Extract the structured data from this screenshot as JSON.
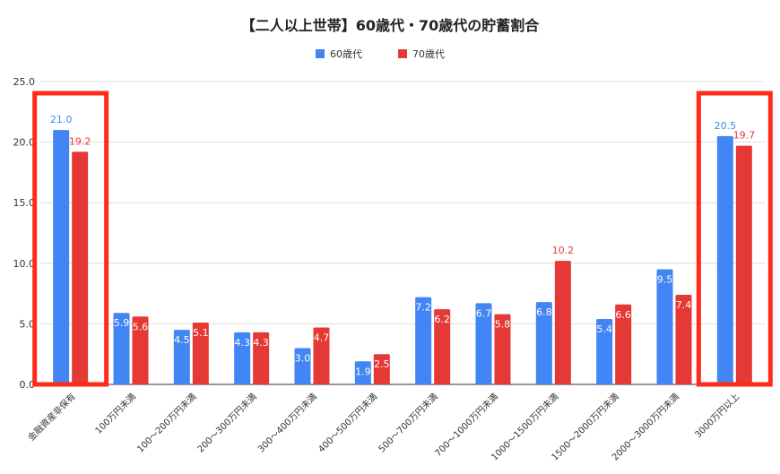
{
  "colors": {
    "series60": "#4285f4",
    "series70": "#e53935",
    "highlight": "#ff2a1a",
    "grid": "#dddddd"
  },
  "chart_data": {
    "type": "bar",
    "title": "【二人以上世帯】60歳代・70歳代の貯蓄割合",
    "xlabel": "",
    "ylabel": "",
    "ylim": [
      0,
      25
    ],
    "yticks": [
      "0.0",
      "5.0",
      "10.0",
      "15.0",
      "20.0",
      "25.0"
    ],
    "grid": true,
    "legend_position": "top",
    "categories": [
      "金融資産非保有",
      "100万円未満",
      "100～200万円未満",
      "200～300万円未満",
      "300～400万円未満",
      "400～500万円未満",
      "500～700万円未満",
      "700～1000万円未満",
      "1000～1500万円未満",
      "1500～2000万円未満",
      "2000～3000万円未満",
      "3000万円以上"
    ],
    "series": [
      {
        "name": "60歳代",
        "values": [
          21.0,
          5.9,
          4.5,
          4.3,
          3.0,
          1.9,
          7.2,
          6.7,
          6.8,
          5.4,
          9.5,
          20.5
        ],
        "labels": [
          "21.0",
          "5.9",
          "4.5",
          "4.3",
          "3.0",
          "1.9",
          "7.2",
          "6.7",
          "6.8",
          "5.4",
          "9.5",
          "20.5"
        ]
      },
      {
        "name": "70歳代",
        "values": [
          19.2,
          5.6,
          5.1,
          4.3,
          4.7,
          2.5,
          6.2,
          5.8,
          10.2,
          6.6,
          7.4,
          19.7
        ],
        "labels": [
          "19.2",
          "5.6",
          "5.1",
          "4.3",
          "4.7",
          "2.5",
          "6.2",
          "5.8",
          "10.2",
          "6.6",
          "7.4",
          "19.7"
        ]
      }
    ],
    "highlighted_categories": [
      0,
      11
    ]
  }
}
